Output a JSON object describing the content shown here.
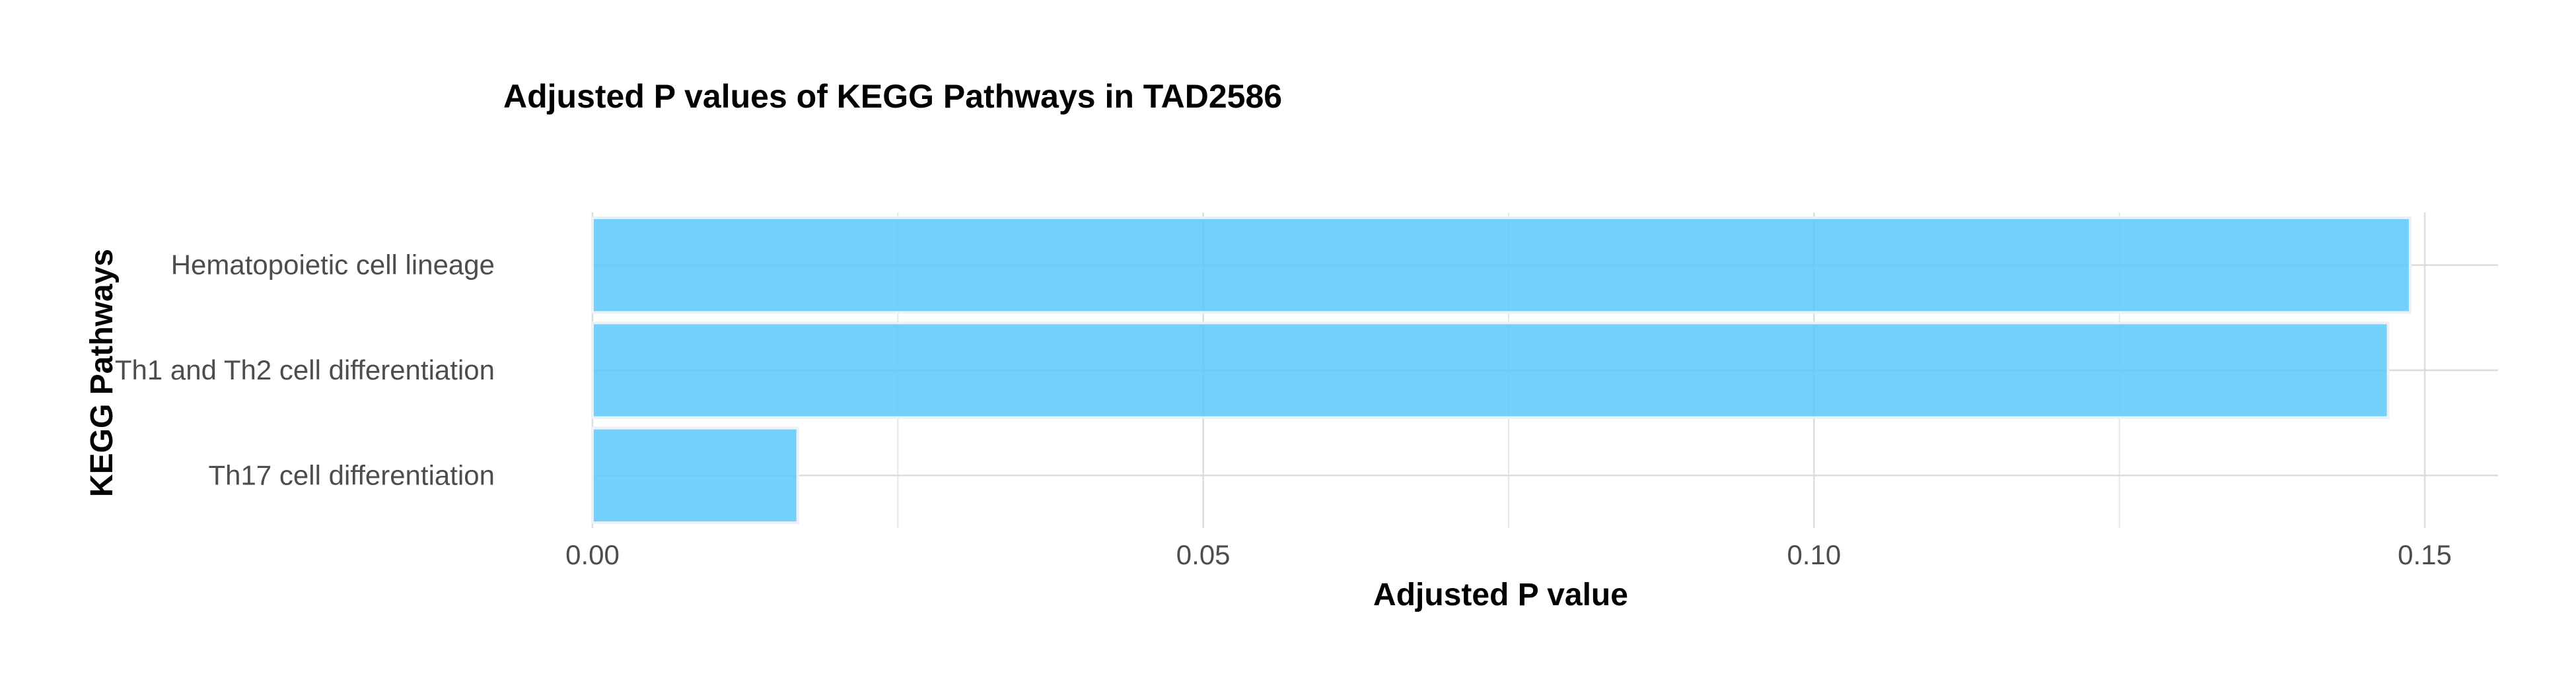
{
  "chart_data": {
    "type": "bar",
    "orientation": "horizontal",
    "title": "Adjusted P values of KEGG Pathways in TAD2586",
    "xlabel": "Adjusted P value",
    "ylabel": "KEGG Pathways",
    "categories": [
      "Hematopoietic cell lineage",
      "Th1 and Th2 cell differentiation",
      "Th17 cell differentiation"
    ],
    "values": [
      0.1488,
      0.147,
      0.0168
    ],
    "xlim": [
      0,
      0.156
    ],
    "xticks": [
      0.0,
      0.05,
      0.1,
      0.15
    ],
    "xtick_labels": [
      "0.00",
      "0.05",
      "0.10",
      "0.15"
    ],
    "grid": true,
    "legend": "none",
    "colors": {
      "bar": "#5bc8fa",
      "grid": "#dcdcdc",
      "tick_text": "#4d4d4d"
    }
  }
}
